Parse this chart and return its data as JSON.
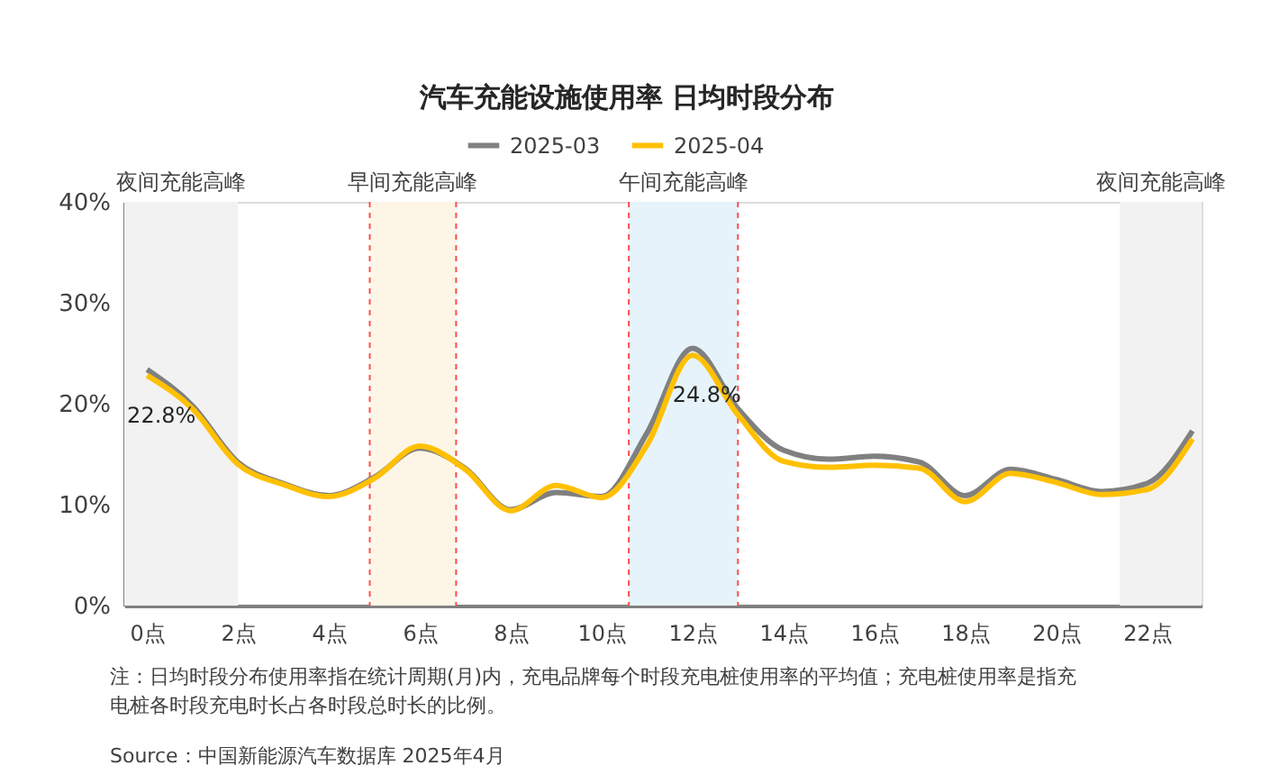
{
  "chart_data": {
    "type": "line",
    "title": "汽车充能设施使用率 日均时段分布",
    "x": [
      0,
      1,
      2,
      3,
      4,
      5,
      6,
      7,
      8,
      9,
      10,
      11,
      12,
      13,
      14,
      15,
      16,
      17,
      18,
      19,
      20,
      21,
      22,
      23
    ],
    "series": [
      {
        "name": "2025-03",
        "color": "#808080",
        "values": [
          23.4,
          19.8,
          14.2,
          12.1,
          10.9,
          12.7,
          15.6,
          13.6,
          9.5,
          11.2,
          10.8,
          17.1,
          25.5,
          19.5,
          15.4,
          14.5,
          14.8,
          14.2,
          10.9,
          13.5,
          12.5,
          11.3,
          12.1,
          17.3
        ]
      },
      {
        "name": "2025-04",
        "color": "#ffc000",
        "values": [
          22.8,
          19.5,
          14.0,
          12.0,
          10.8,
          12.6,
          15.8,
          13.5,
          9.4,
          11.9,
          10.7,
          15.9,
          24.8,
          18.9,
          14.3,
          13.7,
          13.9,
          13.6,
          10.3,
          13.1,
          12.2,
          11.0,
          11.5,
          16.5
        ],
        "value_labels": [
          "22.8%",
          null,
          null,
          null,
          null,
          null,
          null,
          null,
          null,
          null,
          null,
          null,
          "24.8%",
          null,
          null,
          null,
          null,
          null,
          null,
          null,
          null,
          null,
          null,
          null
        ]
      }
    ],
    "xlim": [
      -0.5,
      23.2
    ],
    "xticks": [
      {
        "value": 0,
        "label": "0点"
      },
      {
        "value": 2,
        "label": "2点"
      },
      {
        "value": 4,
        "label": "4点"
      },
      {
        "value": 6,
        "label": "6点"
      },
      {
        "value": 8,
        "label": "8点"
      },
      {
        "value": 10,
        "label": "10点"
      },
      {
        "value": 12,
        "label": "12点"
      },
      {
        "value": 14,
        "label": "14点"
      },
      {
        "value": 16,
        "label": "16点"
      },
      {
        "value": 18,
        "label": "18点"
      },
      {
        "value": 20,
        "label": "20点"
      },
      {
        "value": 22,
        "label": "22点"
      }
    ],
    "ylim": [
      0,
      40
    ],
    "yticks": [
      {
        "value": 0,
        "label": "0%"
      },
      {
        "value": 10,
        "label": "10%"
      },
      {
        "value": 20,
        "label": "20%"
      },
      {
        "value": 30,
        "label": "30%"
      },
      {
        "value": 40,
        "label": "40%"
      }
    ],
    "bands": [
      {
        "axis": "x",
        "from": -0.5,
        "to": 2.0,
        "label": "夜间充能高峰",
        "color": "#f2f2f2"
      },
      {
        "axis": "x",
        "from": 4.9,
        "to": 6.8,
        "label": "早间充能高峰",
        "color": "#fdf6e6"
      },
      {
        "axis": "x",
        "from": 10.6,
        "to": 13.0,
        "label": "午间充能高峰",
        "color": "#e6f3fa"
      },
      {
        "axis": "x",
        "from": 21.4,
        "to": 23.2,
        "label": "夜间充能高峰",
        "color": "#f2f2f2"
      }
    ],
    "ref_lines": [
      {
        "axis": "x",
        "value": 4.9,
        "color": "#ff4d4d",
        "line_style": "dashed"
      },
      {
        "axis": "x",
        "value": 6.8,
        "color": "#ff4d4d",
        "line_style": "dashed"
      },
      {
        "axis": "x",
        "value": 10.6,
        "color": "#ff4d4d",
        "line_style": "dashed"
      },
      {
        "axis": "x",
        "value": 13.0,
        "color": "#ff4d4d",
        "line_style": "dashed"
      }
    ],
    "grid": false,
    "legend": "top",
    "line_style": "solid",
    "marker": "none",
    "annotations": [
      "注：日均时段分布使用率指在统计周期(月)内，充电品牌每个时段充电桩使用率的平均值；充电桩使用率是指充电桩各时段充电时长占各时段总时长的比例。",
      "Source：中国新能源汽车数据库 2025年4月"
    ]
  }
}
